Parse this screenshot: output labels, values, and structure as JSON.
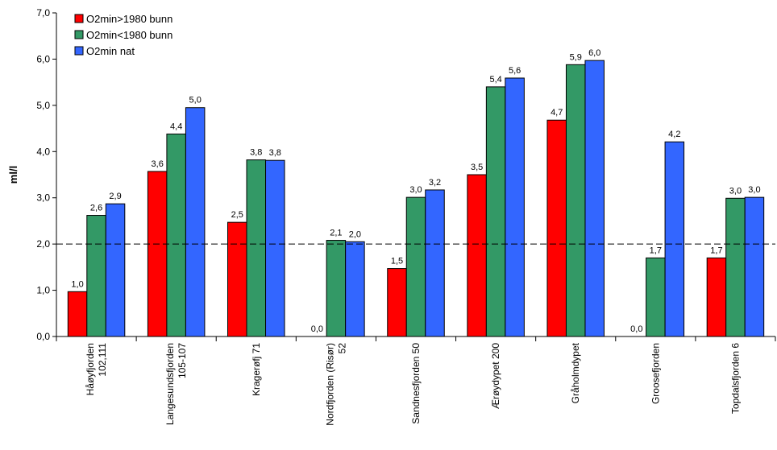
{
  "chart_data": {
    "type": "bar",
    "ylabel": "ml/l",
    "ylim": [
      0,
      7
    ],
    "yticks": [
      "0,0",
      "1,0",
      "2,0",
      "3,0",
      "4,0",
      "5,0",
      "6,0",
      "7,0"
    ],
    "reference_line": 2.0,
    "grid": false,
    "legend_position": "top-left",
    "categories": [
      [
        "Håøyfjorden",
        "102,111"
      ],
      [
        "Langesundsfjorden",
        "105-107"
      ],
      [
        "Kragerøfj 71"
      ],
      [
        "Nordfjorden (Risør)",
        "52"
      ],
      [
        "Sandnesfjorden 50"
      ],
      [
        "Ærøydypet 200"
      ],
      [
        "Gråholmdypet"
      ],
      [
        "Groosefjorden"
      ],
      [
        "Topdalsfjorden 6"
      ]
    ],
    "series": [
      {
        "name": "O2min>1980 bunn",
        "color": "#ff0000",
        "values": [
          0.97,
          3.57,
          2.47,
          0.0,
          1.47,
          3.5,
          4.68,
          0.0,
          1.7
        ],
        "labels": [
          "1,0",
          "3,6",
          "2,5",
          "0,0",
          "1,5",
          "3,5",
          "4,7",
          "0,0",
          "1,7"
        ]
      },
      {
        "name": "O2min<1980 bunn",
        "color": "#339966",
        "values": [
          2.62,
          4.38,
          3.82,
          2.08,
          3.01,
          5.4,
          5.88,
          1.7,
          2.99
        ],
        "labels": [
          "2,6",
          "4,4",
          "3,8",
          "2,1",
          "3,0",
          "5,4",
          "5,9",
          "1,7",
          "3,0"
        ]
      },
      {
        "name": "O2min nat",
        "color": "#3366ff",
        "values": [
          2.87,
          4.95,
          3.81,
          2.05,
          3.17,
          5.59,
          5.97,
          4.21,
          3.01
        ],
        "labels": [
          "2,9",
          "5,0",
          "3,8",
          "2,0",
          "3,2",
          "5,6",
          "6,0",
          "4,2",
          "3,0"
        ]
      }
    ]
  }
}
